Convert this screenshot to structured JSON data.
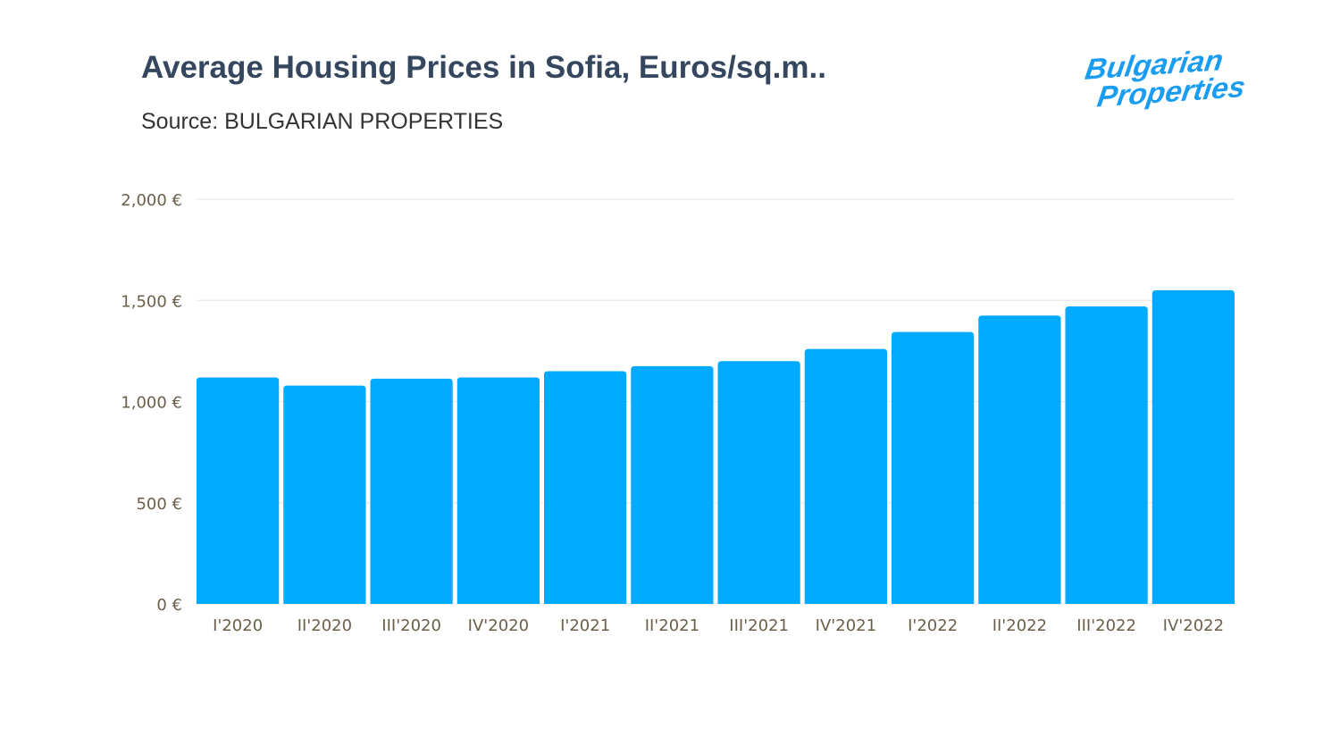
{
  "header": {
    "title": "Average Housing Prices in Sofia, Euros/sq.m..",
    "subtitle": "Source: BULGARIAN PROPERTIES",
    "logo_text": "Bulgarian Properties"
  },
  "colors": {
    "bar": "#00aaff",
    "grid": "#e6e6e6",
    "title": "#34475e",
    "tick": "#6b5f4a"
  },
  "chart_data": {
    "type": "bar",
    "title": "Average Housing Prices in Sofia, Euros/sq.m..",
    "subtitle": "Source: BULGARIAN PROPERTIES",
    "xlabel": "",
    "ylabel": "",
    "categories": [
      "I'2020",
      "II'2020",
      "III'2020",
      "IV'2020",
      "I'2021",
      "II'2021",
      "III'2021",
      "IV'2021",
      "I'2022",
      "II'2022",
      "III'2022",
      "IV'2022"
    ],
    "values": [
      1119,
      1079,
      1113,
      1119,
      1150,
      1175,
      1200,
      1260,
      1344,
      1425,
      1470,
      1550
    ],
    "ylim": [
      0,
      2000
    ],
    "yticks": [
      0,
      500,
      1000,
      1500,
      2000
    ],
    "ytick_labels": [
      "0 €",
      "500 €",
      "1,000 €",
      "1,500 €",
      "2,000 €"
    ],
    "grid": true,
    "legend": "none"
  }
}
